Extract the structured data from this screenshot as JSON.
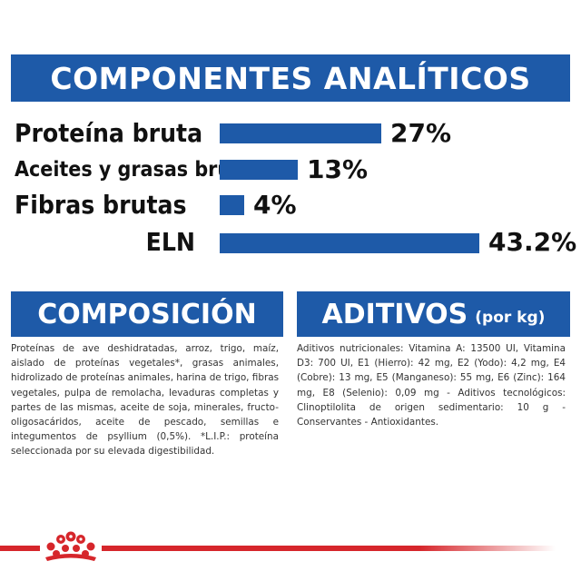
{
  "analytics": {
    "title": "COMPONENTES ANALÍTICOS",
    "rows": [
      {
        "label": "Proteína bruta",
        "value": "27%",
        "fraction": 0.624
      },
      {
        "label": "Aceites y grasas brutos",
        "value": "13%",
        "fraction": 0.301
      },
      {
        "label": "Fibras brutas",
        "value": "4%",
        "fraction": 0.093
      },
      {
        "label": "ELN",
        "value": "43.2%",
        "fraction": 1.0
      }
    ]
  },
  "composicion": {
    "title": "COMPOSICIÓN",
    "text": "Proteínas de ave deshidratadas, arroz, trigo, maíz, aislado de proteínas vegetales*, grasas animales, hidrolizado de proteínas animales, harina de trigo, fibras vegetales, pulpa de remolacha, levaduras completas y partes de las mismas, aceite de soja, minerales, fructo-oligosacáridos, aceite de pescado, semillas e integumentos de psyllium (0,5%). *L.I.P.: proteína seleccionada por su elevada digestibilidad."
  },
  "aditivos": {
    "title": "ADITIVOS",
    "subtitle": "(por kg)",
    "text": "Aditivos nutricionales: Vitamina A: 13500 UI, Vitamina D3: 700 UI, E1 (Hierro): 42 mg, E2 (Yodo): 4,2 mg, E4 (Cobre): 13 mg, E5 (Manganeso): 55 mg, E6 (Zinc): 164 mg, E8 (Selenio): 0,09 mg - Aditivos tecnológicos: Clinoptilolita de origen sedimentario: 10 g - Conservantes - Antioxidantes."
  },
  "colors": {
    "brand_blue": "#1e5aa8",
    "brand_red": "#d6262b"
  },
  "icons": {
    "logo": "royal-canin-crown-icon"
  }
}
